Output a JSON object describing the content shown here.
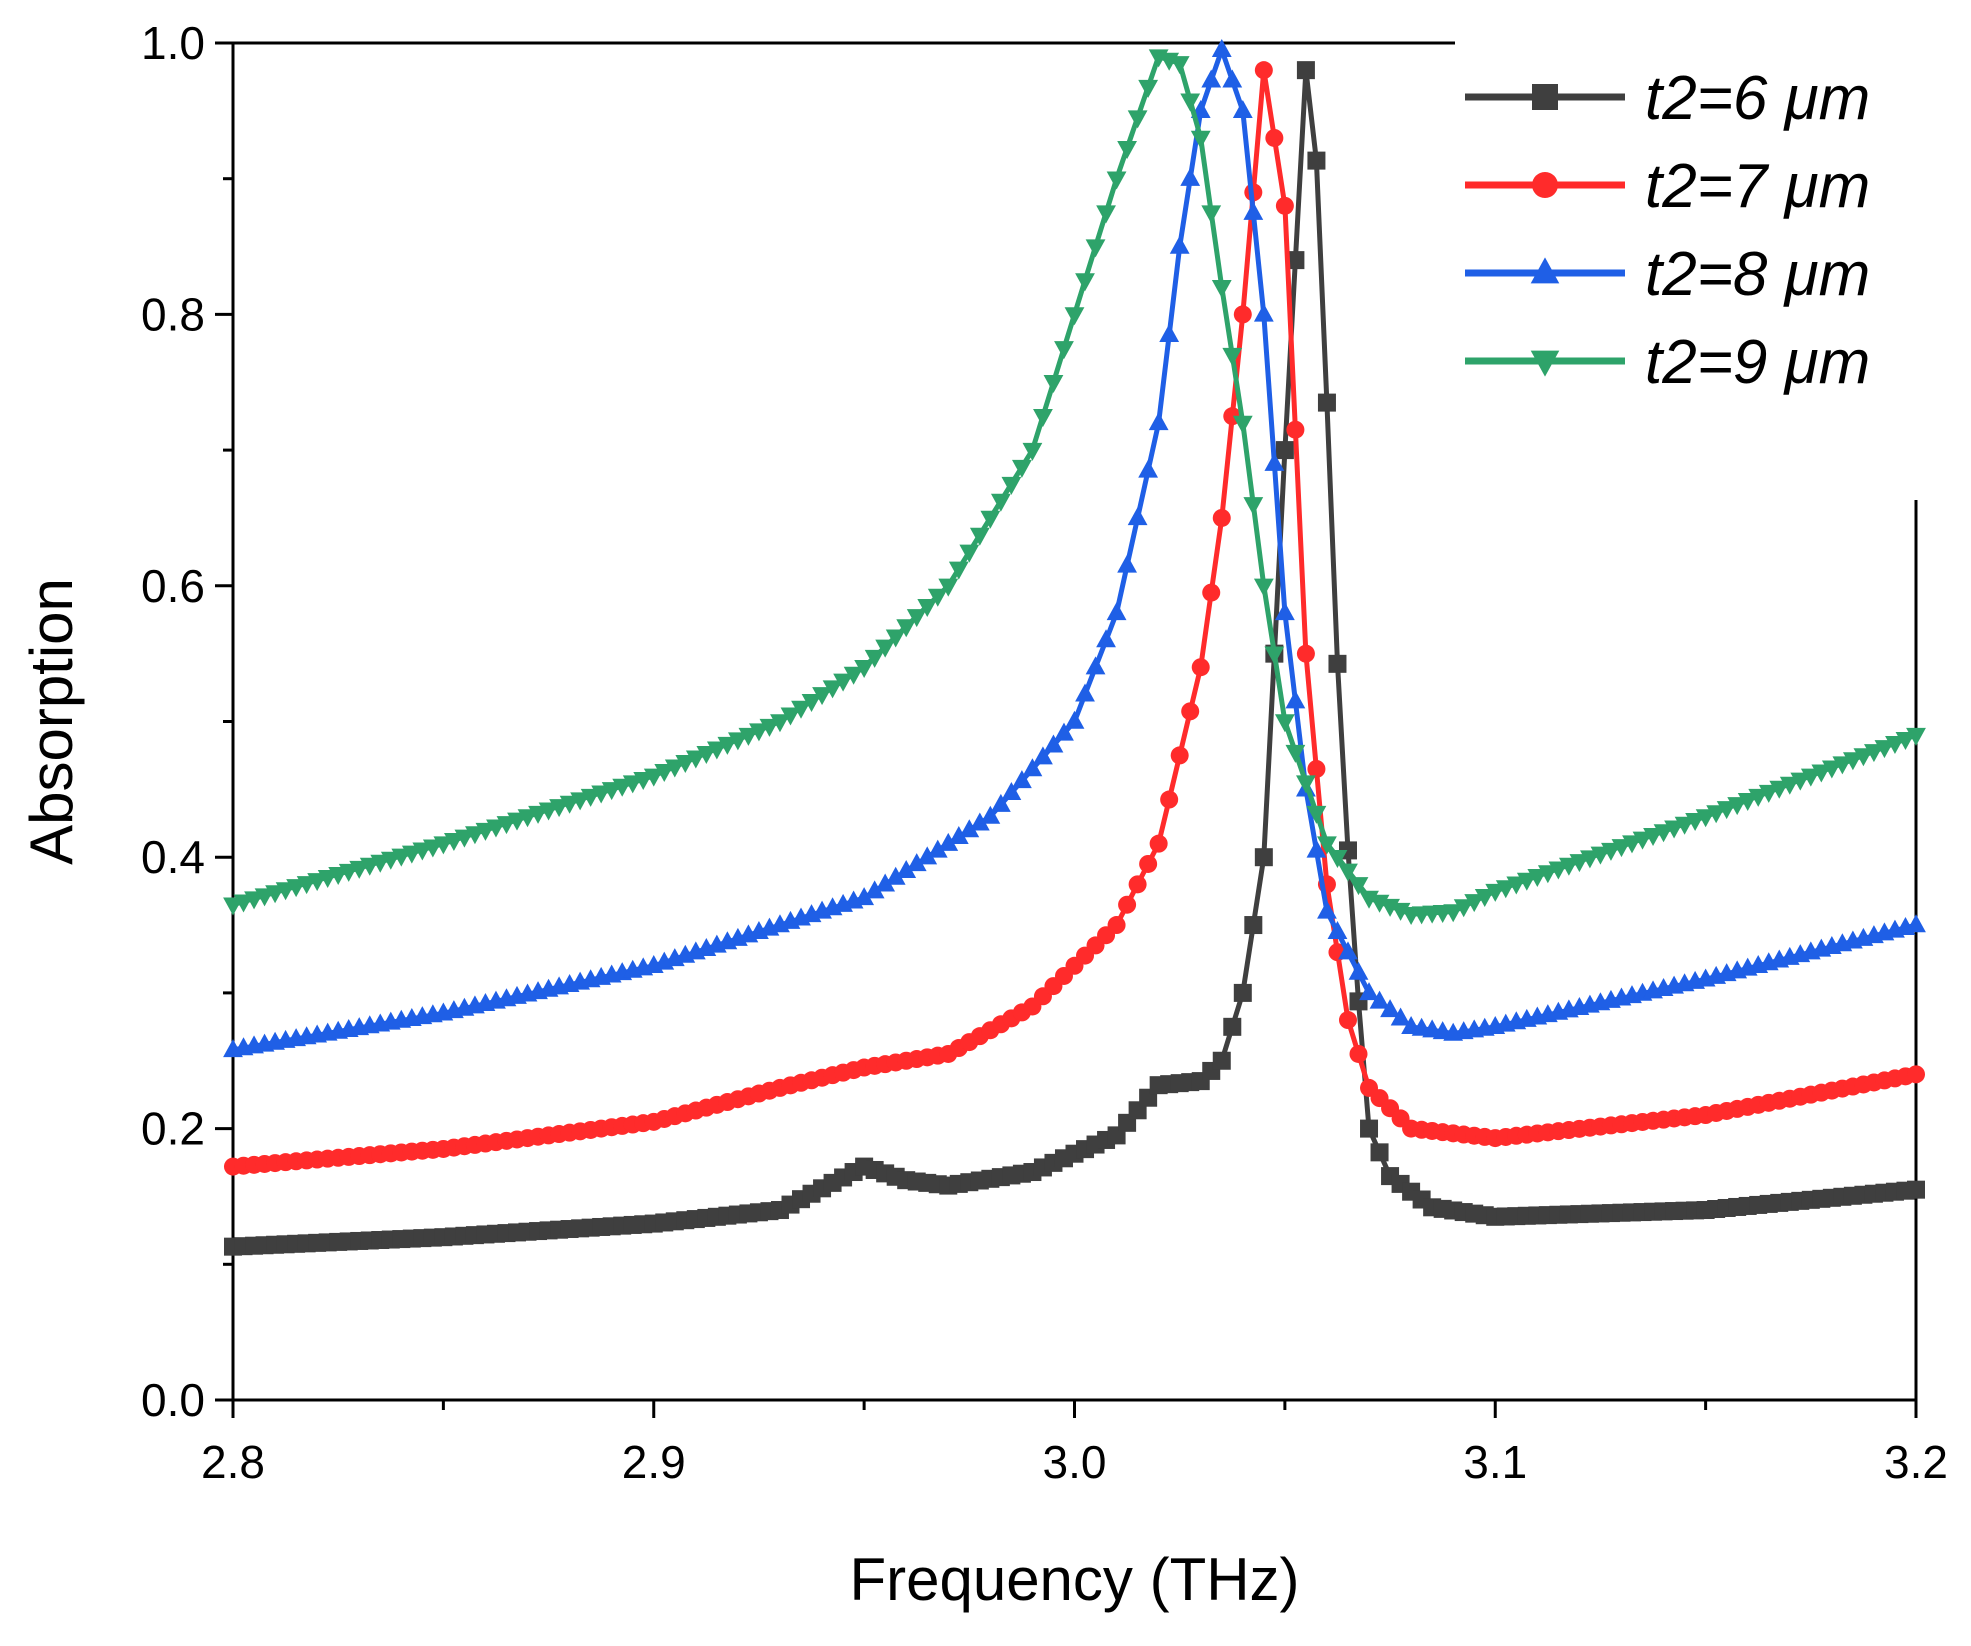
{
  "chart_data": {
    "type": "line",
    "xlabel": "Frequency (THz)",
    "ylabel": "Absorption",
    "xlim": [
      2.8,
      3.2
    ],
    "ylim": [
      0.0,
      1.0
    ],
    "xticks": [
      "2.8",
      "2.9",
      "3.0",
      "3.1",
      "3.2"
    ],
    "yticks": [
      "0.0",
      "0.2",
      "0.4",
      "0.6",
      "0.8",
      "1.0"
    ],
    "legend_position": "top-right",
    "series": [
      {
        "name": "t2=6 μm",
        "color": "#3f3f3f",
        "marker": "square",
        "points": [
          [
            2.8,
            0.113
          ],
          [
            2.85,
            0.12
          ],
          [
            2.9,
            0.13
          ],
          [
            2.93,
            0.14
          ],
          [
            2.95,
            0.172
          ],
          [
            2.96,
            0.162
          ],
          [
            2.97,
            0.158
          ],
          [
            2.99,
            0.168
          ],
          [
            3.01,
            0.195
          ],
          [
            3.02,
            0.232
          ],
          [
            3.03,
            0.235
          ],
          [
            3.035,
            0.25
          ],
          [
            3.04,
            0.3
          ],
          [
            3.045,
            0.4
          ],
          [
            3.05,
            0.7
          ],
          [
            3.055,
            0.98
          ],
          [
            3.058,
            0.9
          ],
          [
            3.062,
            0.57
          ],
          [
            3.066,
            0.35
          ],
          [
            3.07,
            0.2
          ],
          [
            3.075,
            0.165
          ],
          [
            3.085,
            0.142
          ],
          [
            3.1,
            0.135
          ],
          [
            3.15,
            0.14
          ],
          [
            3.2,
            0.155
          ]
        ]
      },
      {
        "name": "t2=7 μm",
        "color": "#ff2b2b",
        "marker": "circle",
        "points": [
          [
            2.8,
            0.172
          ],
          [
            2.85,
            0.185
          ],
          [
            2.9,
            0.205
          ],
          [
            2.93,
            0.23
          ],
          [
            2.95,
            0.245
          ],
          [
            2.97,
            0.255
          ],
          [
            2.99,
            0.29
          ],
          [
            3.01,
            0.35
          ],
          [
            3.02,
            0.41
          ],
          [
            3.03,
            0.54
          ],
          [
            3.035,
            0.65
          ],
          [
            3.04,
            0.8
          ],
          [
            3.045,
            0.98
          ],
          [
            3.05,
            0.88
          ],
          [
            3.055,
            0.55
          ],
          [
            3.06,
            0.38
          ],
          [
            3.065,
            0.28
          ],
          [
            3.07,
            0.23
          ],
          [
            3.08,
            0.2
          ],
          [
            3.1,
            0.193
          ],
          [
            3.15,
            0.21
          ],
          [
            3.2,
            0.24
          ]
        ]
      },
      {
        "name": "t2=8 μm",
        "color": "#1f5fe6",
        "marker": "triangle-up",
        "points": [
          [
            2.8,
            0.258
          ],
          [
            2.85,
            0.285
          ],
          [
            2.9,
            0.32
          ],
          [
            2.95,
            0.37
          ],
          [
            2.98,
            0.43
          ],
          [
            3.0,
            0.5
          ],
          [
            3.01,
            0.58
          ],
          [
            3.02,
            0.72
          ],
          [
            3.025,
            0.85
          ],
          [
            3.03,
            0.95
          ],
          [
            3.035,
            0.995
          ],
          [
            3.04,
            0.95
          ],
          [
            3.045,
            0.8
          ],
          [
            3.05,
            0.58
          ],
          [
            3.055,
            0.45
          ],
          [
            3.06,
            0.36
          ],
          [
            3.07,
            0.3
          ],
          [
            3.08,
            0.275
          ],
          [
            3.09,
            0.27
          ],
          [
            3.1,
            0.275
          ],
          [
            3.15,
            0.31
          ],
          [
            3.2,
            0.35
          ]
        ]
      },
      {
        "name": "t2=9 μm",
        "color": "#2ea36a",
        "marker": "triangle-down",
        "points": [
          [
            2.8,
            0.365
          ],
          [
            2.85,
            0.41
          ],
          [
            2.9,
            0.46
          ],
          [
            2.93,
            0.5
          ],
          [
            2.95,
            0.54
          ],
          [
            2.97,
            0.6
          ],
          [
            2.99,
            0.7
          ],
          [
            3.0,
            0.8
          ],
          [
            3.01,
            0.9
          ],
          [
            3.02,
            0.99
          ],
          [
            3.025,
            0.985
          ],
          [
            3.03,
            0.93
          ],
          [
            3.035,
            0.82
          ],
          [
            3.04,
            0.72
          ],
          [
            3.045,
            0.6
          ],
          [
            3.05,
            0.5
          ],
          [
            3.06,
            0.41
          ],
          [
            3.07,
            0.37
          ],
          [
            3.08,
            0.358
          ],
          [
            3.09,
            0.36
          ],
          [
            3.1,
            0.375
          ],
          [
            3.15,
            0.43
          ],
          [
            3.2,
            0.49
          ]
        ]
      }
    ]
  }
}
